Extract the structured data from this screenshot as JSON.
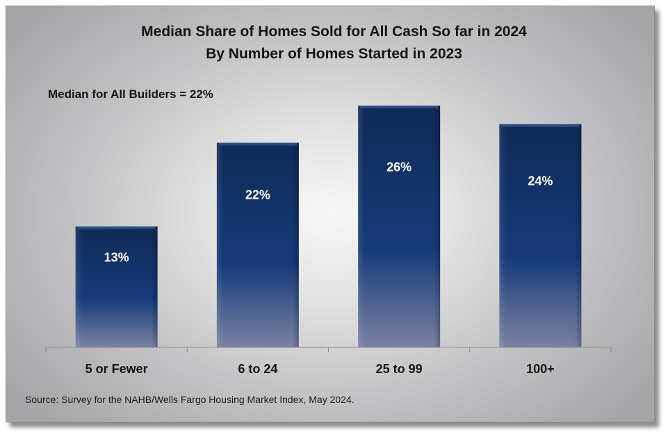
{
  "chart_data": {
    "type": "bar",
    "title": "Median Share of Homes Sold for All Cash So far in 2024",
    "subtitle": "By Number of Homes Started in 2023",
    "annotation": "Median for All Builders = 22%",
    "categories": [
      "5 or Fewer",
      "6 to 24",
      "25 to 99",
      "100+"
    ],
    "values": [
      13,
      22,
      26,
      24
    ],
    "data_labels": [
      "13%",
      "22%",
      "26%",
      "24%"
    ],
    "xlabel": "",
    "ylabel": "",
    "ylim": [
      0,
      26
    ],
    "grid": false,
    "legend": "none",
    "colors": {
      "bar_top": "#0f2a57",
      "bar_mid": "#163b7a",
      "bar_bottom": "#7b82a3"
    }
  },
  "source": "Source: Survey for the NAHB/Wells Fargo Housing Market Index, May 2024."
}
